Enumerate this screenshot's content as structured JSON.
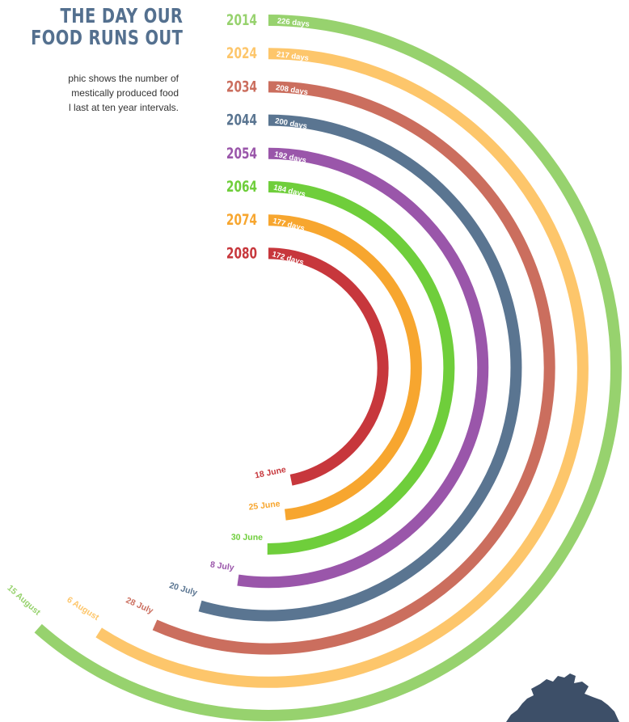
{
  "header": {
    "title_lines": [
      "THE DAY OUR",
      "FOOD RUNS OUT"
    ],
    "subtitle_lines": [
      "phic shows the number of",
      "mestically produced food",
      "l last at ten year intervals."
    ]
  },
  "chart_data": {
    "type": "radial-bar",
    "title": "THE DAY OUR FOOD RUNS OUT",
    "unit": "days",
    "series": [
      {
        "year": "2014",
        "days": 226,
        "days_label": "226 days",
        "end_date": "15 August",
        "color": "#97d26e"
      },
      {
        "year": "2024",
        "days": 217,
        "days_label": "217 days",
        "end_date": "6 August",
        "color": "#fdc66b"
      },
      {
        "year": "2034",
        "days": 208,
        "days_label": "208 days",
        "end_date": "28 July",
        "color": "#cb6e5e"
      },
      {
        "year": "2044",
        "days": 200,
        "days_label": "200 days",
        "end_date": "20 July",
        "color": "#5a7591"
      },
      {
        "year": "2054",
        "days": 192,
        "days_label": "192 days",
        "end_date": "8 July",
        "color": "#9a56aa"
      },
      {
        "year": "2064",
        "days": 184,
        "days_label": "184 days",
        "end_date": "30 June",
        "color": "#6fce3b"
      },
      {
        "year": "2074",
        "days": 177,
        "days_label": "177 days",
        "end_date": "25 June",
        "color": "#f7a62f"
      },
      {
        "year": "2080",
        "days": 172,
        "days_label": "172 days",
        "end_date": "18 June",
        "color": "#c7373c"
      }
    ]
  },
  "decor": {
    "map_icon": "scotland-map-icon",
    "map_color": "#3d4f68"
  }
}
